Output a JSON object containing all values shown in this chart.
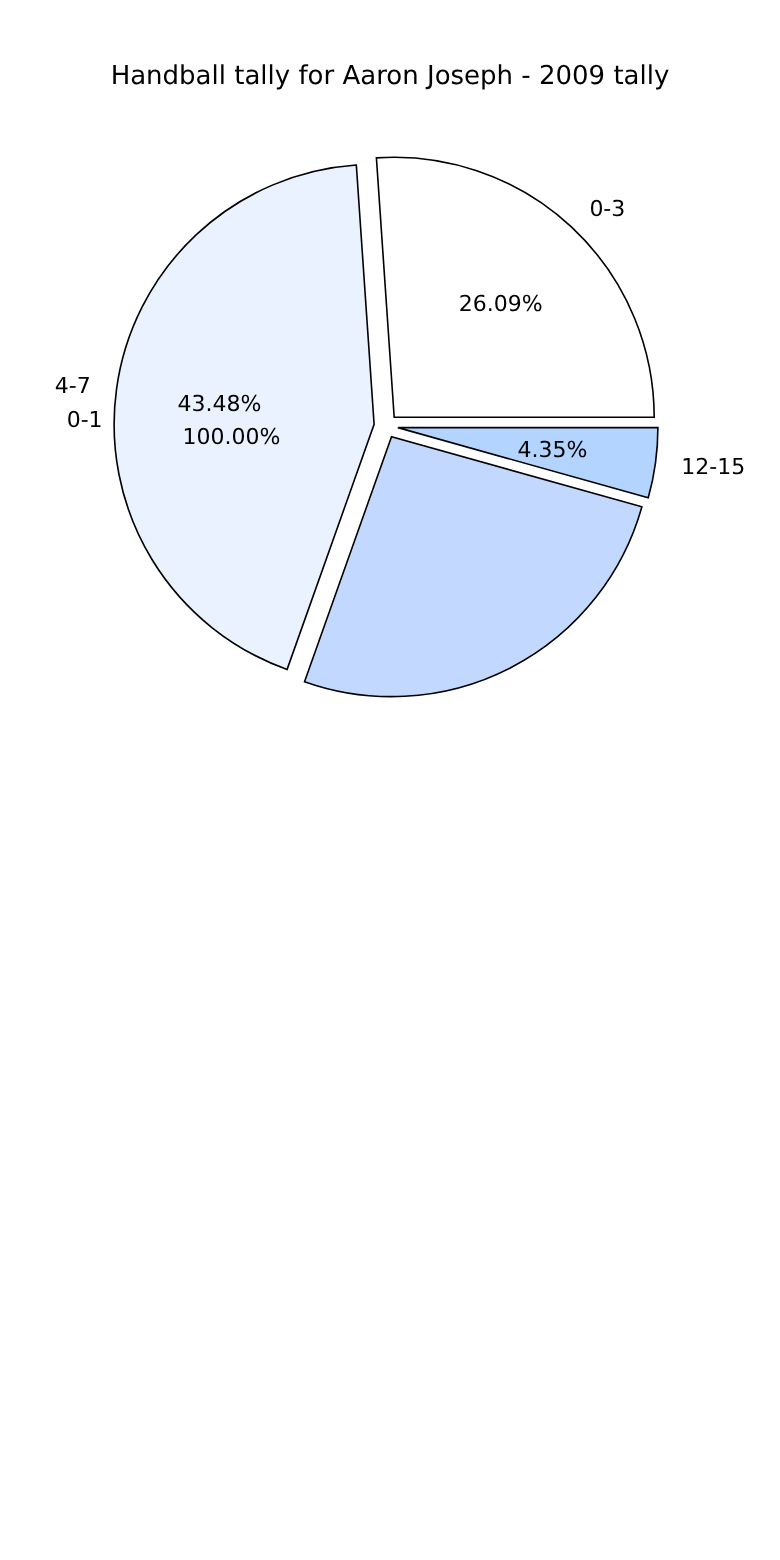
{
  "chart_data": {
    "type": "pie",
    "title": "Handball tally for Aaron Joseph - 2009 tally",
    "categories": [
      "0-3",
      "4-7",
      null,
      "12-15"
    ],
    "values": [
      26.09,
      43.48,
      26.08,
      4.35
    ],
    "colors": [
      "#ffffff",
      "#eaf1ff",
      "#c3d8ff",
      "#b3d4ff"
    ],
    "value_labels": [
      "26.09%",
      "43.48%",
      null,
      "4.35%"
    ],
    "annotations": [
      "0-1",
      "100.00%"
    ]
  }
}
